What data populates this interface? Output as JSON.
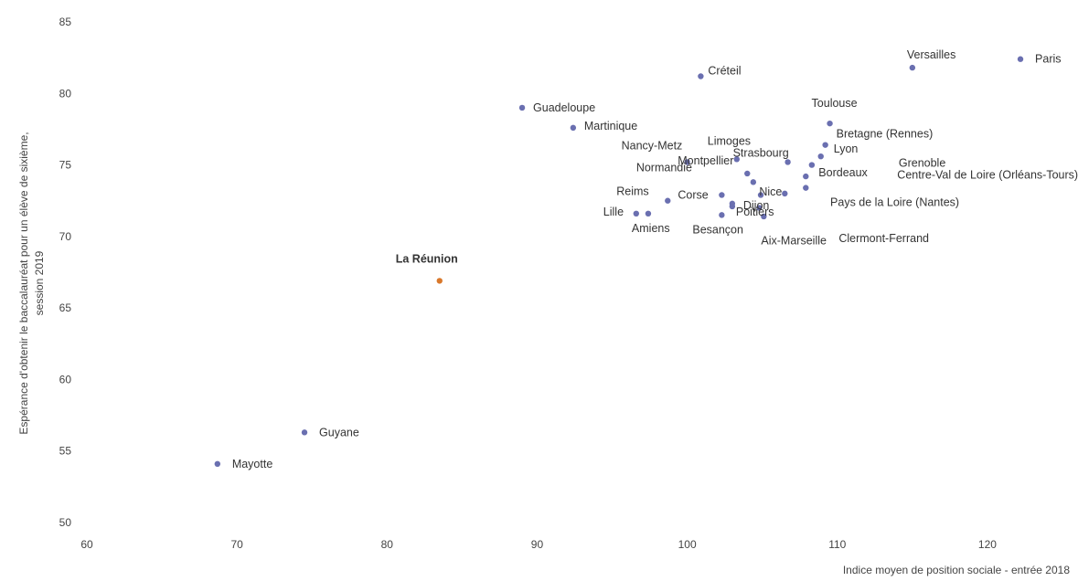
{
  "chart_data": {
    "type": "scatter",
    "title": "",
    "xlabel": "Indice moyen de position sociale - entrée 2018",
    "ylabel_lines": [
      "Espérance d'obtenir le baccalauréat pour un élève de sixième,",
      "session 2019"
    ],
    "xlim": [
      60,
      125
    ],
    "ylim": [
      50,
      85
    ],
    "xticks": [
      60,
      70,
      80,
      90,
      100,
      110,
      120
    ],
    "yticks": [
      50,
      55,
      60,
      65,
      70,
      75,
      80,
      85
    ],
    "grid": false,
    "colors": {
      "default": "#6a6fb0",
      "highlight": "#d9782b",
      "text": "#333333"
    },
    "points": [
      {
        "name": "Paris",
        "x": 122.2,
        "y": 82.4
      },
      {
        "name": "Versailles",
        "x": 115.0,
        "y": 81.8
      },
      {
        "name": "Créteil",
        "x": 100.9,
        "y": 81.2
      },
      {
        "name": "Guadeloupe",
        "x": 89.0,
        "y": 79.0
      },
      {
        "name": "Martinique",
        "x": 92.4,
        "y": 77.6
      },
      {
        "name": "Toulouse",
        "x": 109.5,
        "y": 77.9
      },
      {
        "name": "Bretagne (Rennes)",
        "x": 109.2,
        "y": 76.4
      },
      {
        "name": "Lyon",
        "x": 108.9,
        "y": 75.6
      },
      {
        "name": "Grenoble",
        "x": 108.3,
        "y": 75.0
      },
      {
        "name": "Nancy-Metz",
        "x": 100.0,
        "y": 75.2
      },
      {
        "name": "Limoges",
        "x": 103.3,
        "y": 75.4
      },
      {
        "name": "Strasbourg",
        "x": 106.7,
        "y": 75.2
      },
      {
        "name": "Bordeaux",
        "x": 107.9,
        "y": 74.2
      },
      {
        "name": "Centre-Val de Loire (Orléans-Tours)",
        "x": 107.9,
        "y": 73.4
      },
      {
        "name": "Montpellier",
        "x": 104.0,
        "y": 74.4
      },
      {
        "name": "Normandie",
        "x": 104.4,
        "y": 73.8
      },
      {
        "name": "Nice",
        "x": 106.5,
        "y": 73.0
      },
      {
        "name": "Pays de la Loire (Nantes)",
        "x": 104.9,
        "y": 72.9
      },
      {
        "name": "Reims",
        "x": 98.7,
        "y": 72.5
      },
      {
        "name": "Corse",
        "x": 102.3,
        "y": 72.9
      },
      {
        "name": "Dijon",
        "x": 103.0,
        "y": 72.3
      },
      {
        "name": "Lille",
        "x": 96.6,
        "y": 71.6
      },
      {
        "name": "Amiens",
        "x": 97.4,
        "y": 71.6
      },
      {
        "name": "Besançon",
        "x": 102.3,
        "y": 71.5
      },
      {
        "name": "Poitiers",
        "x": 103.0,
        "y": 72.1
      },
      {
        "name": "Clermont-Ferrand",
        "x": 105.1,
        "y": 71.4
      },
      {
        "name": "Aix-Marseille",
        "x": 104.8,
        "y": 72.0
      },
      {
        "name": "La Réunion",
        "x": 83.5,
        "y": 66.9,
        "highlight": true
      },
      {
        "name": "Guyane",
        "x": 74.5,
        "y": 56.3
      },
      {
        "name": "Mayotte",
        "x": 68.7,
        "y": 54.1
      }
    ]
  }
}
